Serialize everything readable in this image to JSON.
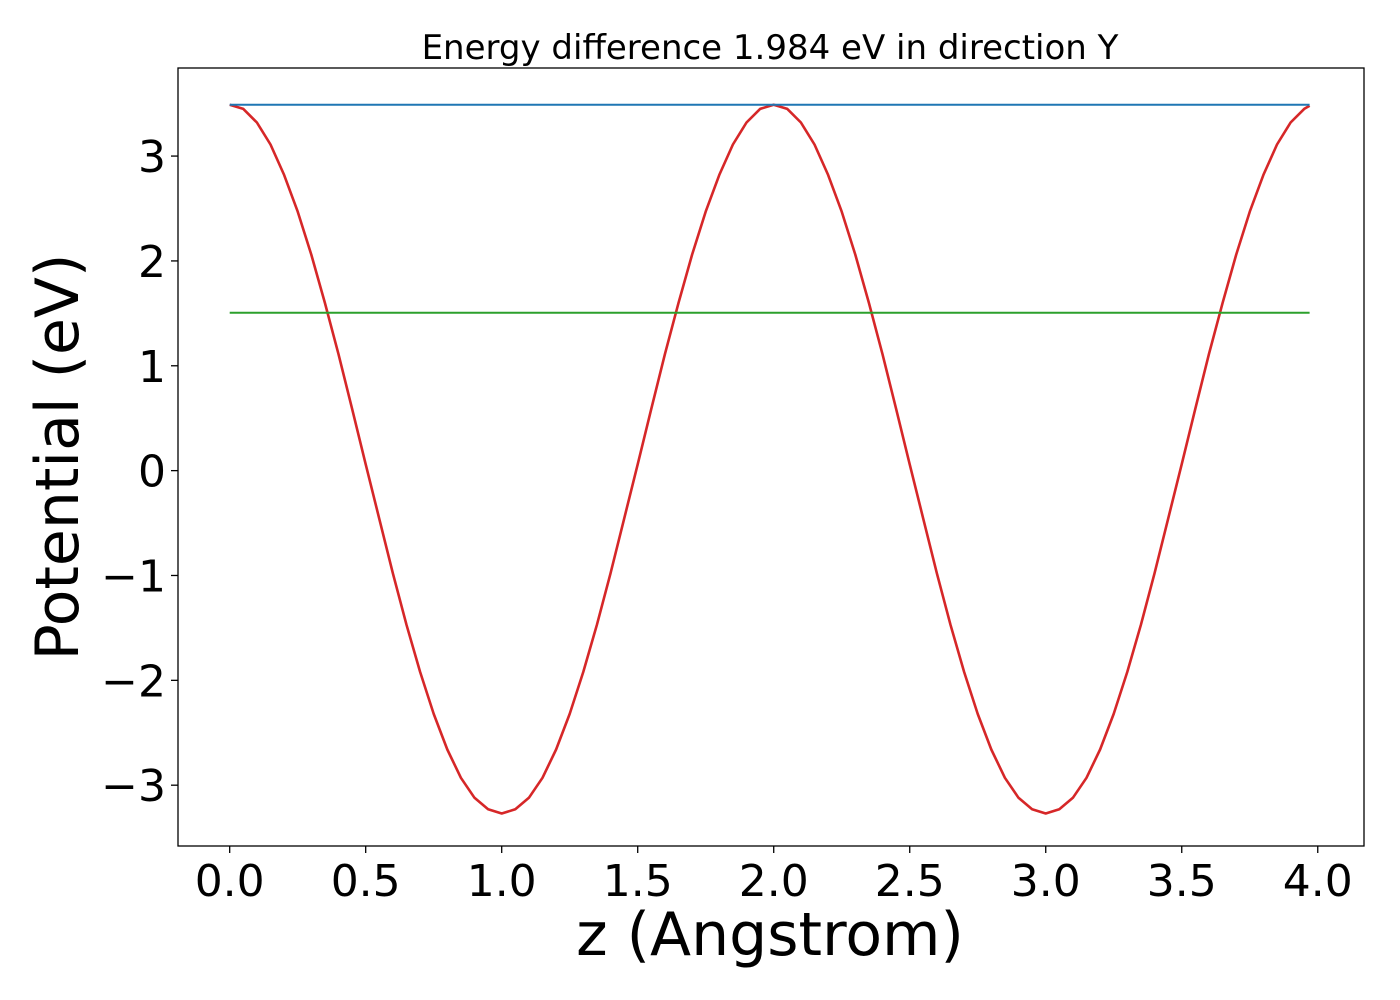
{
  "chart_data": {
    "type": "line",
    "title": "Energy difference 1.984 eV in direction Y",
    "xlabel": "z (Angstrom)",
    "ylabel": "Potential (eV)",
    "xlim": [
      -0.19,
      4.17
    ],
    "ylim": [
      -3.58,
      3.84
    ],
    "x_ticks": [
      0.0,
      0.5,
      1.0,
      1.5,
      2.0,
      2.5,
      3.0,
      3.5,
      4.0
    ],
    "x_tick_labels": [
      "0.0",
      "0.5",
      "1.0",
      "1.5",
      "2.0",
      "2.5",
      "3.0",
      "3.5",
      "4.0"
    ],
    "y_ticks": [
      -3,
      -2,
      -1,
      0,
      1,
      2,
      3
    ],
    "y_tick_labels": [
      "−3",
      "−2",
      "−1",
      "0",
      "1",
      "2",
      "3"
    ],
    "grid": false,
    "series": [
      {
        "color": "#d62728",
        "style": "line",
        "x": [
          0.0,
          0.05,
          0.1,
          0.15,
          0.2,
          0.25,
          0.3,
          0.35,
          0.4,
          0.45,
          0.5,
          0.55,
          0.6,
          0.65,
          0.7,
          0.75,
          0.8,
          0.85,
          0.9,
          0.95,
          1.0,
          1.05,
          1.1,
          1.15,
          1.2,
          1.25,
          1.3,
          1.35,
          1.4,
          1.45,
          1.5,
          1.55,
          1.6,
          1.65,
          1.7,
          1.75,
          1.8,
          1.85,
          1.9,
          1.95,
          2.0,
          2.05,
          2.1,
          2.15,
          2.2,
          2.25,
          2.3,
          2.35,
          2.4,
          2.45,
          2.5,
          2.55,
          2.6,
          2.65,
          2.7,
          2.75,
          2.8,
          2.85,
          2.9,
          2.95,
          3.0,
          3.05,
          3.1,
          3.15,
          3.2,
          3.25,
          3.3,
          3.35,
          3.4,
          3.45,
          3.5,
          3.55,
          3.6,
          3.65,
          3.7,
          3.75,
          3.8,
          3.85,
          3.9,
          3.95,
          3.97
        ],
        "y": [
          3.49,
          3.45,
          3.32,
          3.11,
          2.82,
          2.47,
          2.06,
          1.6,
          1.11,
          0.59,
          0.06,
          -0.46,
          -0.98,
          -1.47,
          -1.92,
          -2.32,
          -2.66,
          -2.93,
          -3.12,
          -3.23,
          -3.27,
          -3.23,
          -3.12,
          -2.93,
          -2.66,
          -2.32,
          -1.92,
          -1.47,
          -0.98,
          -0.46,
          0.06,
          0.59,
          1.11,
          1.6,
          2.06,
          2.47,
          2.82,
          3.11,
          3.32,
          3.45,
          3.49,
          3.45,
          3.32,
          3.11,
          2.82,
          2.47,
          2.06,
          1.6,
          1.11,
          0.59,
          0.06,
          -0.46,
          -0.98,
          -1.47,
          -1.92,
          -2.32,
          -2.66,
          -2.93,
          -3.12,
          -3.23,
          -3.27,
          -3.23,
          -3.12,
          -2.93,
          -2.66,
          -2.32,
          -1.92,
          -1.47,
          -0.98,
          -0.46,
          0.06,
          0.59,
          1.11,
          1.6,
          2.06,
          2.47,
          2.82,
          3.11,
          3.32,
          3.45,
          3.48
        ]
      },
      {
        "color": "#1f77b4",
        "style": "hline",
        "x": [
          0.0,
          3.97
        ],
        "y": [
          3.49,
          3.49
        ]
      },
      {
        "color": "#2ca02c",
        "style": "hline",
        "x": [
          0.0,
          3.97
        ],
        "y": [
          1.506,
          1.506
        ]
      }
    ]
  }
}
